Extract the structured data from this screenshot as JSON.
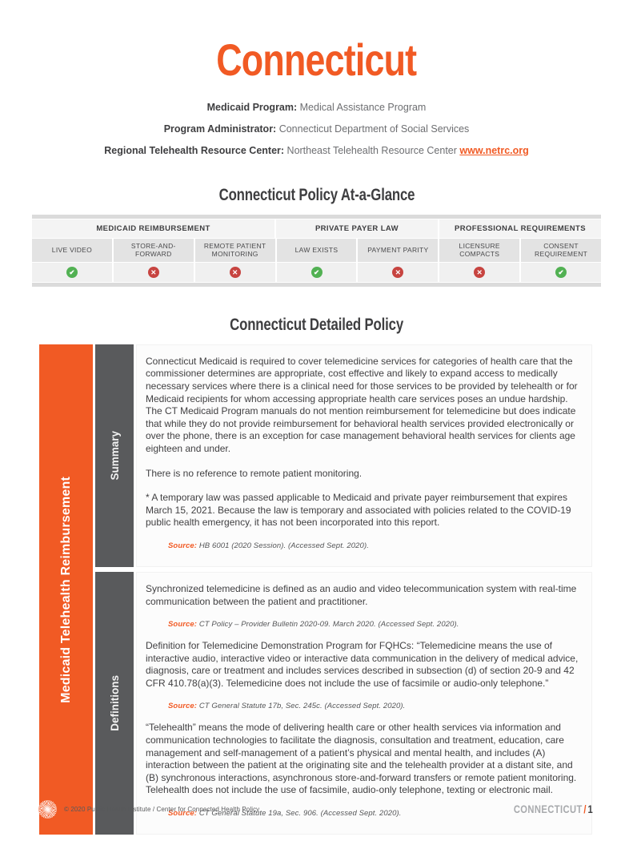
{
  "header": {
    "title": "Connecticut",
    "info": [
      {
        "label": "Medicaid Program:",
        "value": "Medical Assistance Program",
        "link": ""
      },
      {
        "label": "Program Administrator:",
        "value": "Connecticut Department of Social Services",
        "link": ""
      },
      {
        "label": "Regional Telehealth Resource Center:",
        "value": "Northeast Telehealth Resource Center",
        "link": "www.netrc.org"
      }
    ]
  },
  "at_a_glance": {
    "heading": "Connecticut Policy At-a-Glance",
    "groups": [
      {
        "label": "MEDICAID REIMBURSEMENT",
        "cols": 3
      },
      {
        "label": "PRIVATE PAYER LAW",
        "cols": 2
      },
      {
        "label": "PROFESSIONAL REQUIREMENTS",
        "cols": 2
      }
    ],
    "columns": [
      {
        "label": "LIVE VIDEO",
        "status": "yes"
      },
      {
        "label": "STORE-AND-FORWARD",
        "status": "no"
      },
      {
        "label": "REMOTE PATIENT MONITORING",
        "status": "no"
      },
      {
        "label": "LAW EXISTS",
        "status": "yes"
      },
      {
        "label": "PAYMENT PARITY",
        "status": "no"
      },
      {
        "label": "LICENSURE COMPACTS",
        "status": "no"
      },
      {
        "label": "CONSENT REQUIREMENT",
        "status": "yes"
      }
    ],
    "status_glyphs": {
      "yes": "✔",
      "no": "✕"
    },
    "status_colors": {
      "yes": "#52B153",
      "no": "#C74440"
    }
  },
  "detailed": {
    "heading": "Connecticut Detailed Policy",
    "category": "Medicaid Telehealth Reimbursement",
    "sections": [
      {
        "label": "Summary",
        "blocks": [
          {
            "type": "p",
            "text": "Connecticut Medicaid is required to cover telemedicine services for categories of health care that the commissioner determines are appropriate, cost effective and likely to expand access to medically necessary services where there is a clinical need for those services to be provided by telehealth or for Medicaid recipients for whom accessing appropriate health care services poses an undue hardship. The CT Medicaid Program manuals do not mention reimbursement for telemedicine but does indicate that while they do not provide reimbursement for behavioral health services provided electronically or over the phone, there is an exception for case management behavioral health services for clients age eighteen and under."
          },
          {
            "type": "p",
            "text": "There is no reference to remote patient monitoring."
          },
          {
            "type": "p",
            "text": "* A temporary law was passed applicable to Medicaid and private payer reimbursement that expires March 15, 2021.  Because the law is temporary and associated with policies related to the COVID-19 public health emergency, it has not been incorporated into this report."
          },
          {
            "type": "source",
            "label": "Source:",
            "text": "HB 6001 (2020 Session). (Accessed Sept. 2020)."
          }
        ]
      },
      {
        "label": "Definitions",
        "blocks": [
          {
            "type": "p",
            "text": "Synchronized telemedicine is defined as an audio and video telecommunication system with real-time communication between the patient and practitioner."
          },
          {
            "type": "source",
            "label": "Source:",
            "text": "CT Policy – Provider Bulletin 2020-09. March 2020. (Accessed Sept. 2020)."
          },
          {
            "type": "p",
            "text": "Definition for Telemedicine Demonstration Program for FQHCs: “Telemedicine means the use of interactive audio, interactive video or interactive data communication in the delivery of medical advice, diagnosis, care or treatment and includes services described in subsection (d) of section 20-9 and 42 CFR 410.78(a)(3). Telemedicine does not include the use of facsimile or audio-only telephone.”"
          },
          {
            "type": "source",
            "label": "Source:",
            "text": "CT General Statute 17b, Sec. 245c. (Accessed Sept. 2020)."
          },
          {
            "type": "p",
            "text": "“Telehealth” means the mode of delivering health care or other health services via information and communication technologies to facilitate the diagnosis, consultation and treatment, education, care management and self-management of a patient’s physical and mental health, and includes (A) interaction between the patient at the originating site and the telehealth provider at a distant site, and (B) synchronous interactions, asynchronous store-and-forward transfers or remote patient monitoring. Telehealth does not include the use of facsimile, audio-only telephone, texting or electronic mail."
          },
          {
            "type": "source",
            "label": "Source:",
            "text": "CT General Statute 19a, Sec. 906.  (Accessed Sept. 2020)."
          }
        ]
      }
    ]
  },
  "footer": {
    "copyright": "© 2020 Public Health Institute / Center for Connected Health Policy",
    "page_label": "CONNECTICUT",
    "page_separator": "/",
    "page_number": "1"
  },
  "colors": {
    "accent_orange": "#F15A24",
    "sidebar_gray": "#595A5C",
    "status_green": "#52B153",
    "status_red": "#C74440"
  }
}
